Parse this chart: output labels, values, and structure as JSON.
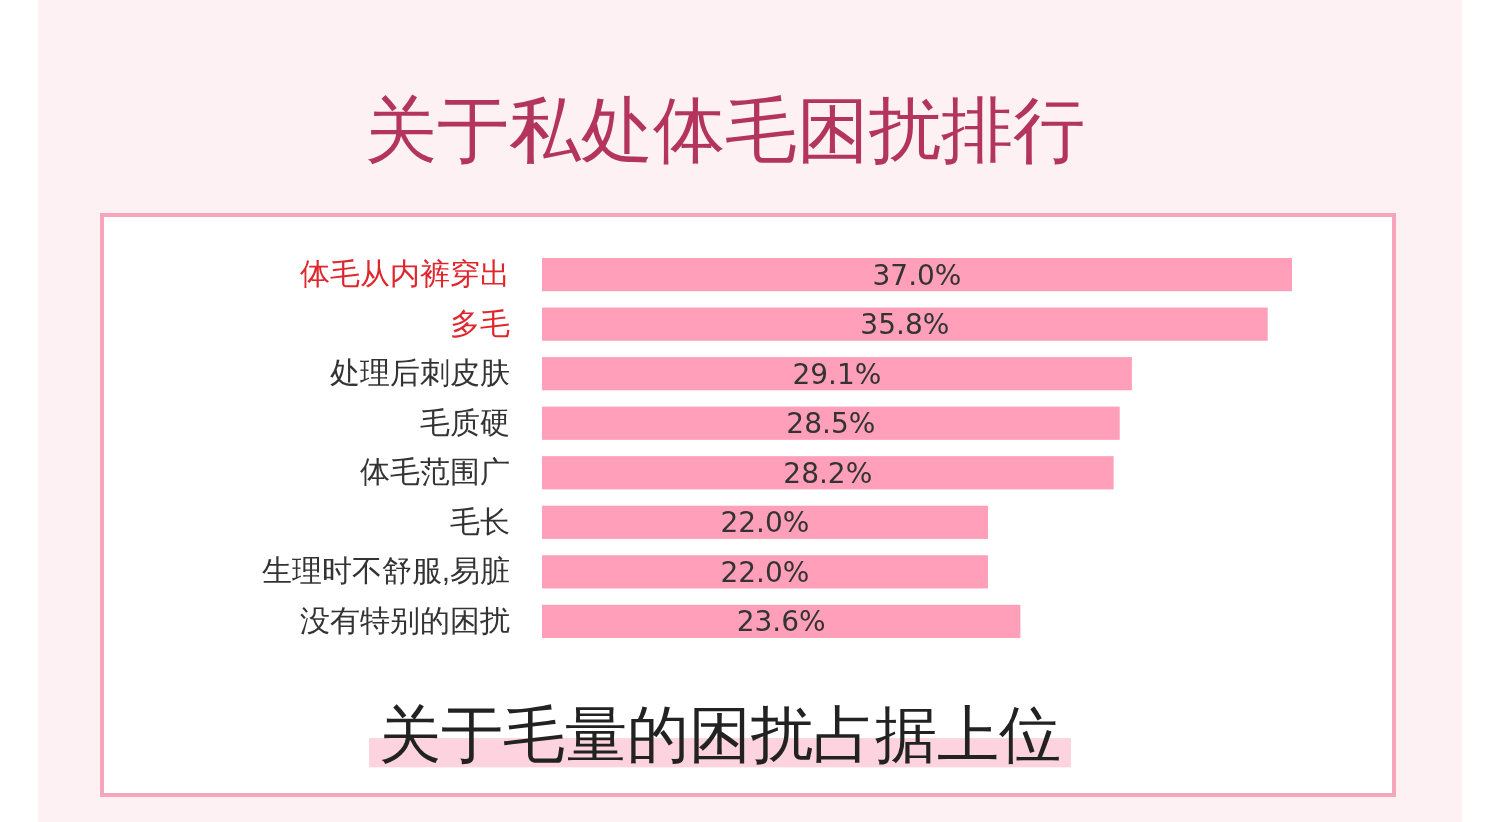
{
  "chart_data": {
    "type": "bar",
    "orientation": "horizontal",
    "title": "关于私处体毛困扰排行",
    "categories": [
      "体毛从内裤穿出",
      "多毛",
      "处理后刺皮肤",
      "毛质硬",
      "体毛范围广",
      "毛长",
      "生理时不舒服,易脏",
      "没有特别的困扰"
    ],
    "values": [
      37.0,
      35.8,
      29.1,
      28.5,
      28.2,
      22.0,
      22.0,
      23.6
    ],
    "value_labels": [
      "37.0%",
      "35.8%",
      "29.1%",
      "28.5%",
      "28.2%",
      "22.0%",
      "22.0%",
      "23.6%"
    ],
    "color": "#ff9fb9",
    "xlim": [
      0,
      37
    ],
    "tick_labels": "y",
    "annotations": [
      "关于毛量的困扰占据上位"
    ]
  }
}
